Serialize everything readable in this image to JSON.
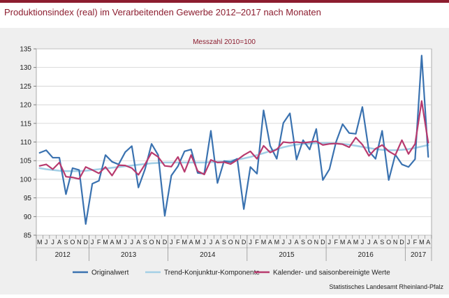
{
  "page": {
    "title": "Produktionsindex (real) im Verarbeitenden Gewerbe 2012–2017 nach Monaten",
    "source": "Statistisches Landesamt Rheinland-Pfalz",
    "colors": {
      "accent": "#8c1d2f",
      "background": "#efefef"
    }
  },
  "chart_data": {
    "type": "line",
    "subtitle": "Messzahl 2010=100",
    "ylim": [
      85,
      135
    ],
    "yticks": [
      85,
      90,
      95,
      100,
      105,
      110,
      115,
      120,
      125,
      130,
      135
    ],
    "grid": true,
    "legend_position": "bottom",
    "month_labels": [
      "M",
      "J",
      "J",
      "A",
      "S",
      "O",
      "N",
      "D",
      "J",
      "F",
      "M",
      "A",
      "M",
      "J",
      "J",
      "A",
      "S",
      "O",
      "N",
      "D",
      "J",
      "F",
      "M",
      "A",
      "M",
      "J",
      "J",
      "A",
      "S",
      "O",
      "N",
      "D",
      "J",
      "F",
      "M",
      "A",
      "M",
      "J",
      "J",
      "A",
      "S",
      "O",
      "N",
      "D",
      "J",
      "F",
      "M",
      "A",
      "M",
      "J",
      "J",
      "A",
      "S",
      "O",
      "N",
      "D",
      "J",
      "F",
      "M",
      "A"
    ],
    "year_groups": [
      {
        "year": "2012",
        "count": 8
      },
      {
        "year": "2013",
        "count": 12
      },
      {
        "year": "2014",
        "count": 12
      },
      {
        "year": "2015",
        "count": 12
      },
      {
        "year": "2016",
        "count": 12
      },
      {
        "year": "2017",
        "count": 4
      }
    ],
    "series": [
      {
        "name": "Originalwert",
        "color": "#3a72b0",
        "values": [
          107.1,
          107.8,
          105.8,
          105.8,
          96.0,
          103.0,
          102.5,
          88.0,
          98.8,
          99.6,
          106.5,
          104.7,
          104.0,
          107.3,
          108.9,
          97.8,
          102.7,
          109.5,
          106.5,
          90.2,
          101.0,
          103.5,
          107.5,
          108.0,
          101.7,
          101.5,
          113.0,
          99.0,
          104.9,
          104.6,
          105.5,
          92.0,
          103.3,
          101.5,
          118.5,
          109.0,
          105.5,
          115.1,
          117.7,
          105.3,
          110.5,
          108.0,
          113.5,
          99.8,
          102.7,
          110.0,
          114.8,
          112.4,
          112.2,
          119.4,
          107.5,
          105.5,
          113.0,
          99.8,
          106.6,
          104.0,
          103.3,
          105.4,
          133.2,
          106.0
        ]
      },
      {
        "name": "Trend-Konjunktur-Komponente",
        "color": "#a3cfe6",
        "values": [
          103.0,
          102.7,
          102.5,
          102.3,
          102.2,
          102.2,
          102.2,
          102.3,
          102.5,
          102.7,
          102.9,
          103.1,
          103.3,
          103.5,
          103.7,
          103.9,
          104.1,
          104.3,
          104.4,
          104.5,
          104.5,
          104.5,
          104.5,
          104.5,
          104.5,
          104.5,
          104.6,
          104.7,
          104.8,
          105.0,
          105.3,
          105.6,
          106.0,
          106.5,
          107.0,
          107.6,
          108.1,
          108.6,
          109.0,
          109.3,
          109.5,
          109.6,
          109.7,
          109.7,
          109.7,
          109.6,
          109.5,
          109.3,
          109.0,
          108.7,
          108.4,
          108.1,
          107.9,
          107.8,
          107.8,
          107.9,
          108.1,
          108.4,
          108.8,
          109.2
        ]
      },
      {
        "name": "Kalender- und saisonbereinigte Werte",
        "color": "#b83a6e",
        "values": [
          103.6,
          104.0,
          102.7,
          104.5,
          100.7,
          100.5,
          100.1,
          103.3,
          102.5,
          101.6,
          103.3,
          101.0,
          103.8,
          103.7,
          103.0,
          101.2,
          104.0,
          107.2,
          106.0,
          103.6,
          103.4,
          106.0,
          102.0,
          106.5,
          102.2,
          101.3,
          105.2,
          104.5,
          104.6,
          104.1,
          105.2,
          106.5,
          107.5,
          105.5,
          109.0,
          107.2,
          108.0,
          110.0,
          109.8,
          110.0,
          109.8,
          110.0,
          110.2,
          109.2,
          109.5,
          109.6,
          109.4,
          108.6,
          111.2,
          109.3,
          106.3,
          108.2,
          109.2,
          107.5,
          106.5,
          110.5,
          106.8,
          109.5,
          121.0,
          109.8
        ]
      }
    ]
  }
}
